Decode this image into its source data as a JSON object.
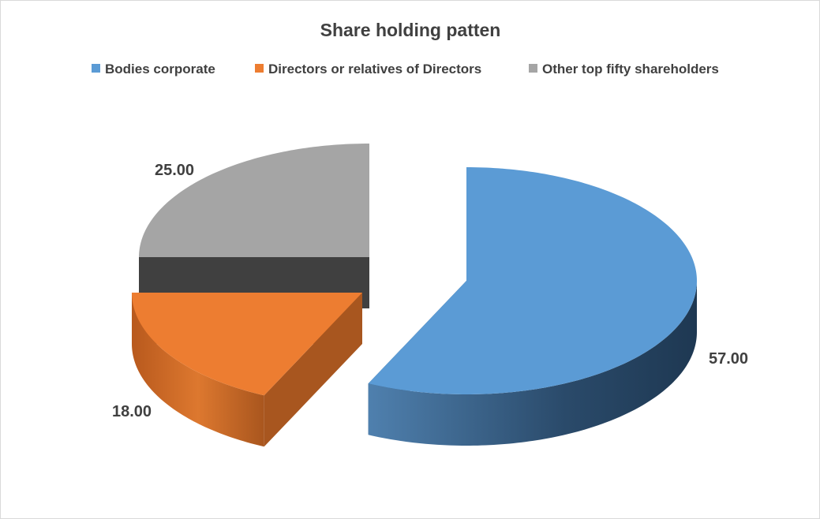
{
  "chart_data": {
    "type": "pie",
    "variant": "3d-exploded",
    "title": "Share holding patten",
    "legend_position": "top",
    "slices": [
      {
        "name": "Bodies corporate",
        "value": 57.0,
        "label": "57.00",
        "color": "#5B9BD5"
      },
      {
        "name": "Directors or relatives of Directors",
        "value": 18.0,
        "label": "18.00",
        "color": "#ED7D31"
      },
      {
        "name": "Other top fifty shareholders",
        "value": 25.0,
        "label": "25.00",
        "color": "#A5A5A5"
      }
    ]
  }
}
